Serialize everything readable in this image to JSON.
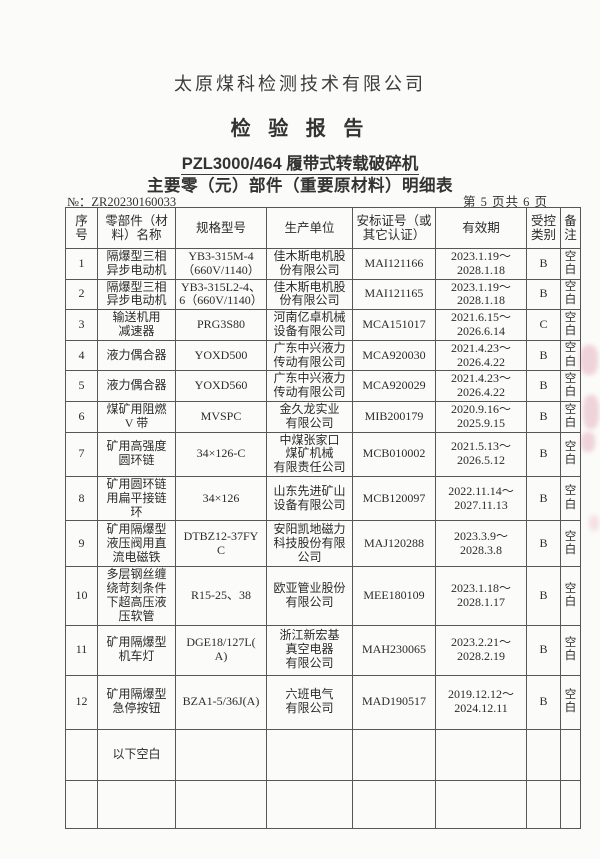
{
  "page": {
    "company": "太原煤科检测技术有限公司",
    "report_title": "检 验 报 告",
    "machine_title": "PZL3000/464 履带式转载破碎机",
    "list_title": "主要零（元）部件（重要原材料）明细表",
    "report_no": "№：ZR20230160033",
    "page_info": "第 5 页共 6 页"
  },
  "table": {
    "headers": [
      "序\n号",
      "零部件（材\n料）名称",
      "规格型号",
      "生产单位",
      "安标证号（或\n其它认证）",
      "有效期",
      "受控\n类别",
      "备\n注"
    ],
    "rows": [
      {
        "no": "1",
        "name": "隔爆型三相\n异步电动机",
        "model": "YB3-315M-4\n（660V/1140）",
        "maker": "佳木斯电机股\n份有限公司",
        "cert": "MAI121166",
        "valid": "2023.1.19～\n2028.1.18",
        "ctrl": "B",
        "remark": "空白"
      },
      {
        "no": "2",
        "name": "隔爆型三相\n异步电动机",
        "model": "YB3-315L2-4、\n6（660V/1140）",
        "maker": "佳木斯电机股\n份有限公司",
        "cert": "MAI121165",
        "valid": "2023.1.19～\n2028.1.18",
        "ctrl": "B",
        "remark": "空白"
      },
      {
        "no": "3",
        "name": "输送机用\n减速器",
        "model": "PRG3S80",
        "maker": "河南亿卓机械\n设备有限公司",
        "cert": "MCA151017",
        "valid": "2021.6.15～\n2026.6.14",
        "ctrl": "C",
        "remark": "空白"
      },
      {
        "no": "4",
        "name": "液力偶合器",
        "model": "YOXD500",
        "maker": "广东中兴液力\n传动有限公司",
        "cert": "MCA920030",
        "valid": "2021.4.23～\n2026.4.22",
        "ctrl": "B",
        "remark": "空白"
      },
      {
        "no": "5",
        "name": "液力偶合器",
        "model": "YOXD560",
        "maker": "广东中兴液力\n传动有限公司",
        "cert": "MCA920029",
        "valid": "2021.4.23～\n2026.4.22",
        "ctrl": "B",
        "remark": "空白"
      },
      {
        "no": "6",
        "name": "煤矿用阻燃\nV 带",
        "model": "MVSPC",
        "maker": "金久龙实业\n有限公司",
        "cert": "MIB200179",
        "valid": "2020.9.16～\n2025.9.15",
        "ctrl": "B",
        "remark": "空白"
      },
      {
        "no": "7",
        "name": "矿用高强度\n圆环链",
        "model": "34×126-C",
        "maker": "中煤张家口\n煤矿机械\n有限责任公司",
        "cert": "MCB010002",
        "valid": "2021.5.13～\n2026.5.12",
        "ctrl": "B",
        "remark": "空白"
      },
      {
        "no": "8",
        "name": "矿用圆环链\n用扁平接链\n环",
        "model": "34×126",
        "maker": "山东先进矿山\n设备有限公司",
        "cert": "MCB120097",
        "valid": "2022.11.14～\n2027.11.13",
        "ctrl": "B",
        "remark": "空白"
      },
      {
        "no": "9",
        "name": "矿用隔爆型\n液压阀用直\n流电磁铁",
        "model": "DTBZ12-37FY\nC",
        "maker": "安阳凯地磁力\n科技股份有限\n公司",
        "cert": "MAJ120288",
        "valid": "2023.3.9～\n2028.3.8",
        "ctrl": "B",
        "remark": "空白"
      },
      {
        "no": "10",
        "name": "多层钢丝缠\n绕苛刻条件\n下超高压液\n压软管",
        "model": "R15-25、38",
        "maker": "欧亚管业股份\n有限公司",
        "cert": "MEE180109",
        "valid": "2023.1.18～\n2028.1.17",
        "ctrl": "B",
        "remark": "空白"
      },
      {
        "no": "11",
        "name": "矿用隔爆型\n机车灯",
        "model": "DGE18/127L(\nA)",
        "maker": "浙江新宏基\n真空电器\n有限公司",
        "cert": "MAH230065",
        "valid": "2023.2.21～\n2028.2.19",
        "ctrl": "B",
        "remark": "空白"
      },
      {
        "no": "12",
        "name": "矿用隔爆型\n急停按钮",
        "model": "BZA1-5/36J(A)",
        "maker": "六班电气\n有限公司",
        "cert": "MAD190517",
        "valid": "2019.12.12～\n2024.12.11",
        "ctrl": "B",
        "remark": "空白"
      },
      {
        "no": "",
        "name": "以下空白",
        "model": "",
        "maker": "",
        "cert": "",
        "valid": "",
        "ctrl": "",
        "remark": ""
      },
      {
        "no": "",
        "name": "",
        "model": "",
        "maker": "",
        "cert": "",
        "valid": "",
        "ctrl": "",
        "remark": ""
      }
    ]
  },
  "colors": {
    "stamp_pink": "#d06d8e",
    "border_gray": "#57575a"
  }
}
